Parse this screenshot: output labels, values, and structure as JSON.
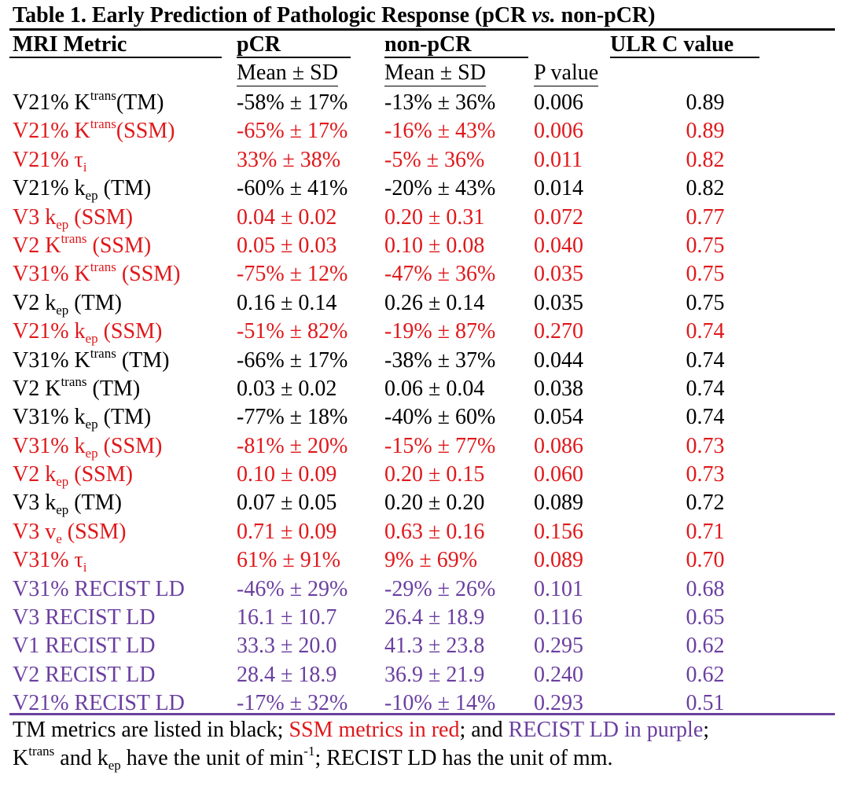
{
  "title": {
    "prefix": "Table 1.  Early Prediction of Pathologic Response (pCR ",
    "vs": "vs.",
    "suffix": " non-pCR)"
  },
  "colors": {
    "tm": "#000000",
    "ssm": "#e0181b",
    "recist": "#6a3fa0"
  },
  "headers": {
    "metric": "MRI Metric",
    "pcr": "pCR",
    "nonpcr": "non-pCR",
    "cvalue": "ULR C value",
    "pcr_sub": "Mean ± SD",
    "nonpcr_sub": "Mean ± SD",
    "pvalue_sub": "P value"
  },
  "rows": [
    {
      "base": "V21% K",
      "sup": "trans",
      "sub": "",
      "tail": "(TM)",
      "pcr": "-58% ± 17%",
      "nonpcr": "-13% ± 36%",
      "p": "0.006",
      "c": "0.89",
      "group": "black"
    },
    {
      "base": "V21% K",
      "sup": "trans",
      "sub": "",
      "tail": "(SSM)",
      "pcr": "-65% ± 17%",
      "nonpcr": "-16% ± 43%",
      "p": "0.006",
      "c": "0.89",
      "group": "red"
    },
    {
      "base": "V21% τ",
      "sup": "",
      "sub": "i",
      "tail": "",
      "pcr": "33% ± 38%",
      "nonpcr": "-5% ± 36%",
      "p": "0.011",
      "c": "0.82",
      "group": "red"
    },
    {
      "base": "V21% k",
      "sup": "",
      "sub": "ep",
      "tail": " (TM)",
      "pcr": "-60% ± 41%",
      "nonpcr": "-20% ± 43%",
      "p": "0.014",
      "c": "0.82",
      "group": "black"
    },
    {
      "base": "V3 k",
      "sup": "",
      "sub": "ep",
      "tail": " (SSM)",
      "pcr": "0.04 ± 0.02",
      "nonpcr": "0.20 ± 0.31",
      "p": "0.072",
      "c": "0.77",
      "group": "red"
    },
    {
      "base": "V2 K",
      "sup": "trans",
      "sub": "",
      "tail": " (SSM)",
      "pcr": "0.05 ± 0.03",
      "nonpcr": "0.10 ± 0.08",
      "p": "0.040",
      "c": "0.75",
      "group": "red"
    },
    {
      "base": "V31% K",
      "sup": "trans",
      "sub": "",
      "tail": " (SSM)",
      "pcr": "-75% ± 12%",
      "nonpcr": "-47% ± 36%",
      "p": "0.035",
      "c": "0.75",
      "group": "red"
    },
    {
      "base": "V2 k",
      "sup": "",
      "sub": "ep",
      "tail": " (TM)",
      "pcr": "0.16 ± 0.14",
      "nonpcr": "0.26 ± 0.14",
      "p": "0.035",
      "c": "0.75",
      "group": "black"
    },
    {
      "base": "V21% k",
      "sup": "",
      "sub": "ep",
      "tail": " (SSM)",
      "pcr": "-51% ± 82%",
      "nonpcr": "-19% ± 87%",
      "p": "0.270",
      "c": "0.74",
      "group": "red"
    },
    {
      "base": "V31% K",
      "sup": "trans",
      "sub": "",
      "tail": " (TM)",
      "pcr": "-66% ± 17%",
      "nonpcr": "-38% ± 37%",
      "p": "0.044",
      "c": "0.74",
      "group": "black"
    },
    {
      "base": "V2 K",
      "sup": "trans",
      "sub": "",
      "tail": " (TM)",
      "pcr": "0.03 ± 0.02",
      "nonpcr": "0.06 ± 0.04",
      "p": "0.038",
      "c": "0.74",
      "group": "black"
    },
    {
      "base": "V31% k",
      "sup": "",
      "sub": "ep",
      "tail": " (TM)",
      "pcr": "-77% ± 18%",
      "nonpcr": "-40% ± 60%",
      "p": "0.054",
      "c": "0.74",
      "group": "black"
    },
    {
      "base": "V31% k",
      "sup": "",
      "sub": "ep",
      "tail": " (SSM)",
      "pcr": "-81% ± 20%",
      "nonpcr": "-15% ± 77%",
      "p": "0.086",
      "c": "0.73",
      "group": "red"
    },
    {
      "base": "V2 k",
      "sup": "",
      "sub": "ep",
      "tail": " (SSM)",
      "pcr": "0.10 ± 0.09",
      "nonpcr": "0.20 ± 0.15",
      "p": "0.060",
      "c": "0.73",
      "group": "red"
    },
    {
      "base": "V3 k",
      "sup": "",
      "sub": "ep",
      "tail": " (TM)",
      "pcr": "0.07 ± 0.05",
      "nonpcr": "0.20 ± 0.20",
      "p": "0.089",
      "c": "0.72",
      "group": "black"
    },
    {
      "base": "V3 v",
      "sup": "",
      "sub": "e",
      "tail": " (SSM)",
      "pcr": "0.71 ± 0.09",
      "nonpcr": "0.63 ± 0.16",
      "p": "0.156",
      "c": "0.71",
      "group": "red"
    },
    {
      "base": "V31% τ",
      "sup": "",
      "sub": "i",
      "tail": "",
      "pcr": "61% ± 91%",
      "nonpcr": "9% ± 69%",
      "p": "0.089",
      "c": "0.70",
      "group": "red"
    },
    {
      "base": "V31% RECIST LD",
      "sup": "",
      "sub": "",
      "tail": "",
      "pcr": "-46% ± 29%",
      "nonpcr": "-29% ± 26%",
      "p": "0.101",
      "c": "0.68",
      "group": "purple"
    },
    {
      "base": "V3 RECIST LD",
      "sup": "",
      "sub": "",
      "tail": "",
      "pcr": "16.1 ± 10.7",
      "nonpcr": "26.4 ± 18.9",
      "p": "0.116",
      "c": "0.65",
      "group": "purple"
    },
    {
      "base": "V1 RECIST LD",
      "sup": "",
      "sub": "",
      "tail": "",
      "pcr": "33.3 ± 20.0",
      "nonpcr": "41.3 ± 23.8",
      "p": "0.295",
      "c": "0.62",
      "group": "purple"
    },
    {
      "base": "V2 RECIST LD",
      "sup": "",
      "sub": "",
      "tail": "",
      "pcr": "28.4 ± 18.9",
      "nonpcr": "36.9 ± 21.9",
      "p": "0.240",
      "c": "0.62",
      "group": "purple"
    },
    {
      "base": "V21% RECIST LD",
      "sup": "",
      "sub": "",
      "tail": "",
      "pcr": "-17% ± 32%",
      "nonpcr": "-10% ± 14%",
      "p": "0.293",
      "c": "0.51",
      "group": "purple"
    }
  ],
  "footnote": {
    "line1_a": "TM metrics are listed in black; ",
    "line1_b": "SSM metrics in red",
    "line1_c": "; and ",
    "line1_d": "RECIST LD in purple",
    "line1_e": ";",
    "line2_a": "K",
    "line2_sup1": "trans",
    "line2_b": " and k",
    "line2_sub": "ep",
    "line2_c": " have the unit of min",
    "line2_sup2": "-1",
    "line2_d": "; RECIST LD has the unit of mm."
  }
}
